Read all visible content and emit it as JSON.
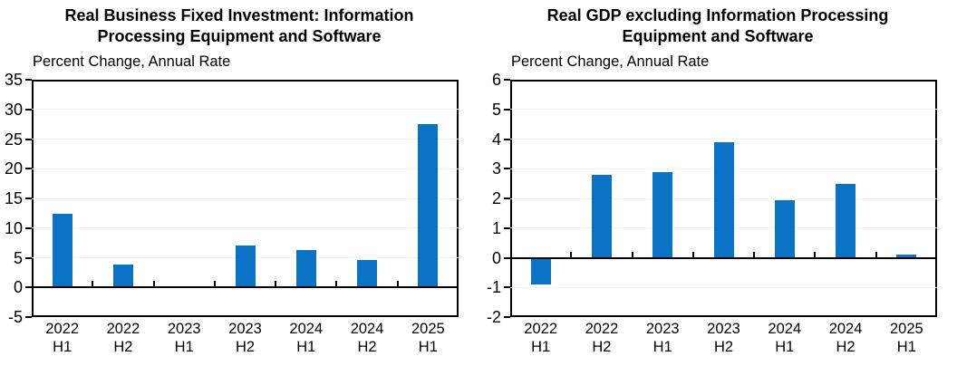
{
  "figure": {
    "background": "#ffffff",
    "axis_color": "#000000",
    "bar_color": "#0b73c4",
    "grid_color": "#f2f2f2"
  },
  "chart_data": [
    {
      "type": "bar",
      "title": "Real Business Fixed Investment: Information Processing Equipment and Software",
      "title_lines": [
        "Real Business Fixed Investment: Information",
        "Processing Equipment and Software"
      ],
      "subtitle": "Percent Change, Annual Rate",
      "xlabel": "",
      "ylabel": "Percent Change, Annual Rate",
      "categories": [
        "2022 H1",
        "2022 H2",
        "2023 H1",
        "2023 H2",
        "2024 H1",
        "2024 H2",
        "2025 H1"
      ],
      "values": [
        12.4,
        3.9,
        0.1,
        7.0,
        6.3,
        4.6,
        27.5
      ],
      "ylim": [
        -5,
        35
      ],
      "ytick_step": 5,
      "grid": true,
      "legend": "none"
    },
    {
      "type": "bar",
      "title": "Real GDP excluding Information Processing Equipment and Software",
      "title_lines": [
        "Real GDP excluding Information Processing",
        "Equipment and Software"
      ],
      "subtitle": "Percent Change, Annual Rate",
      "xlabel": "",
      "ylabel": "Percent Change, Annual Rate",
      "categories": [
        "2022 H1",
        "2022 H2",
        "2023 H1",
        "2023 H2",
        "2024 H1",
        "2024 H2",
        "2025 H1"
      ],
      "values": [
        -0.9,
        2.8,
        2.9,
        3.9,
        1.95,
        2.5,
        0.1
      ],
      "ylim": [
        -2,
        6
      ],
      "ytick_step": 1,
      "grid": true,
      "legend": "none"
    }
  ]
}
